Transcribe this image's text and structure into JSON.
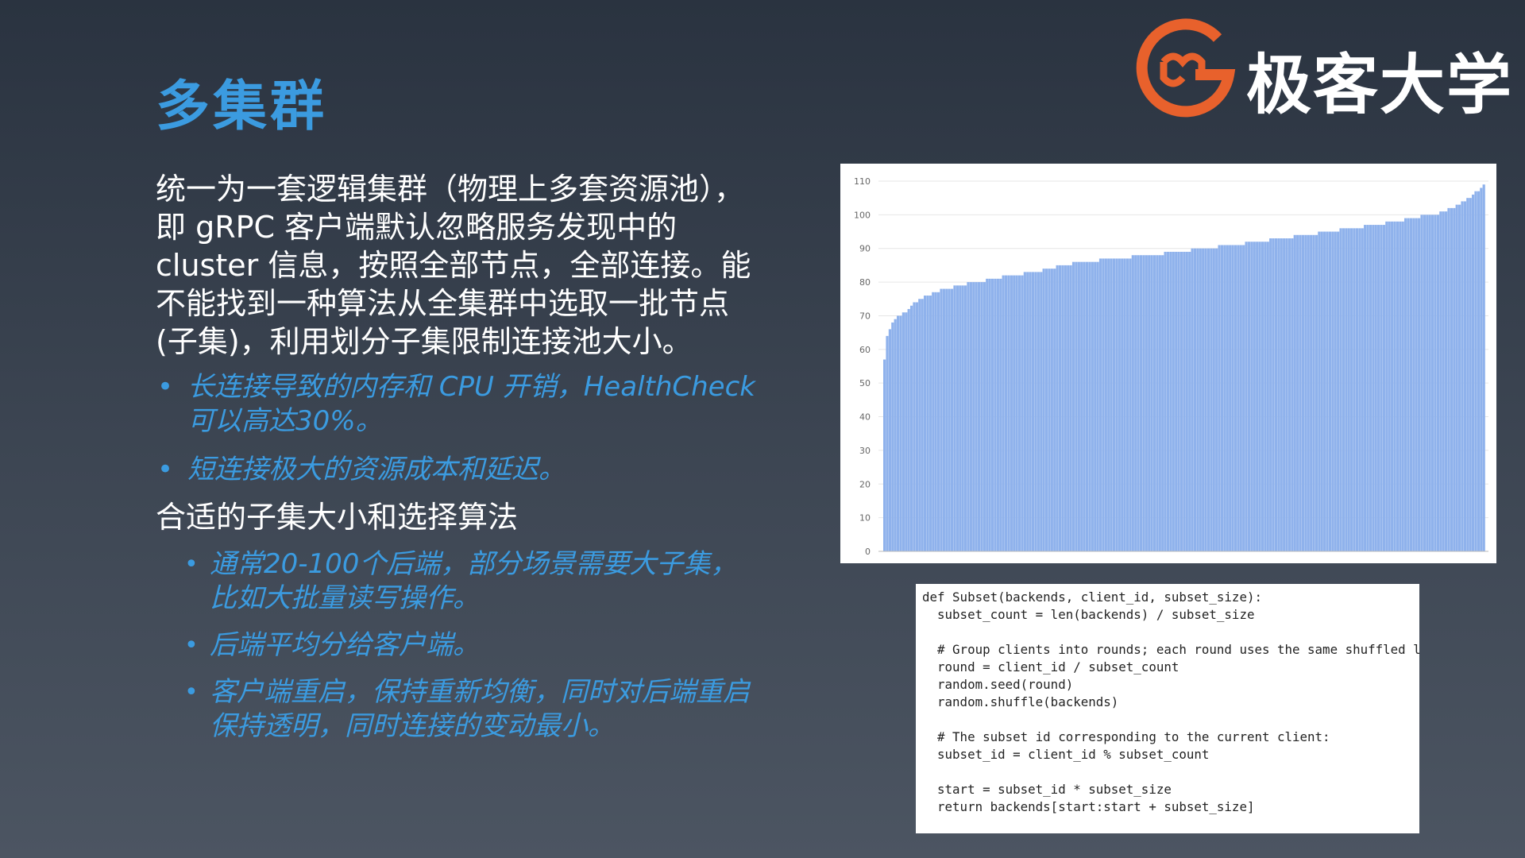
{
  "title": "多集群",
  "logo": {
    "text": "极客大学",
    "icon": "geekbang-g-logo-icon",
    "color": "#e8612c"
  },
  "intro": "统一为一套逻辑集群（物理上多套资源池），即 gRPC 客户端默认忽略服务发现中的 cluster 信息，按照全部节点，全部连接。能不能找到一种算法从全集群中选取一批节点(子集)，利用划分子集限制连接池大小。",
  "bullets": [
    "长连接导致的内存和 CPU 开销，HealthCheck 可以高达30%。",
    "短连接极大的资源成本和延迟。"
  ],
  "subheading": "合适的子集大小和选择算法",
  "sub_bullets": [
    "通常20-100个后端，部分场景需要大子集，比如大批量读写操作。",
    "后端平均分给客户端。",
    "客户端重启，保持重新均衡，同时对后端重启保持透明，同时连接的变动最小。"
  ],
  "colors": {
    "accent": "#3b9be0",
    "bar": "#8fb2ec"
  },
  "chart_data": {
    "type": "bar",
    "title": "",
    "xlabel": "",
    "ylabel": "",
    "ylim": [
      0,
      110
    ],
    "yticks": [
      "0",
      "10",
      "20",
      "30",
      "40",
      "50",
      "60",
      "70",
      "80",
      "90",
      "100",
      "110"
    ],
    "values": [
      57,
      64,
      66,
      68,
      69,
      70,
      70,
      71,
      71,
      72,
      73,
      74,
      74,
      75,
      75,
      76,
      76,
      76,
      77,
      77,
      77,
      78,
      78,
      78,
      78,
      78,
      79,
      79,
      79,
      79,
      79,
      80,
      80,
      80,
      80,
      80,
      80,
      80,
      81,
      81,
      81,
      81,
      81,
      81,
      82,
      82,
      82,
      82,
      82,
      82,
      82,
      82,
      83,
      83,
      83,
      83,
      83,
      83,
      83,
      84,
      84,
      84,
      84,
      84,
      85,
      85,
      85,
      85,
      85,
      85,
      86,
      86,
      86,
      86,
      86,
      86,
      86,
      86,
      86,
      86,
      87,
      87,
      87,
      87,
      87,
      87,
      87,
      87,
      87,
      87,
      87,
      87,
      88,
      88,
      88,
      88,
      88,
      88,
      88,
      88,
      88,
      88,
      88,
      88,
      89,
      89,
      89,
      89,
      89,
      89,
      89,
      89,
      89,
      89,
      90,
      90,
      90,
      90,
      90,
      90,
      90,
      90,
      90,
      90,
      91,
      91,
      91,
      91,
      91,
      91,
      91,
      91,
      91,
      91,
      92,
      92,
      92,
      92,
      92,
      92,
      92,
      92,
      92,
      93,
      93,
      93,
      93,
      93,
      93,
      93,
      93,
      93,
      94,
      94,
      94,
      94,
      94,
      94,
      94,
      94,
      94,
      95,
      95,
      95,
      95,
      95,
      95,
      95,
      95,
      96,
      96,
      96,
      96,
      96,
      96,
      96,
      96,
      96,
      97,
      97,
      97,
      97,
      97,
      97,
      97,
      97,
      98,
      98,
      98,
      98,
      98,
      98,
      98,
      99,
      99,
      99,
      99,
      99,
      99,
      100,
      100,
      100,
      100,
      100,
      100,
      100,
      101,
      101,
      101,
      102,
      102,
      102,
      103,
      103,
      104,
      104,
      105,
      105,
      106,
      107,
      107,
      108,
      109
    ]
  },
  "code_lines": [
    "def Subset(backends, client_id, subset_size):",
    "  subset_count = len(backends) / subset_size",
    "",
    "  # Group clients into rounds; each round uses the same shuffled list:",
    "  round = client_id / subset_count",
    "  random.seed(round)",
    "  random.shuffle(backends)",
    "",
    "  # The subset id corresponding to the current client:",
    "  subset_id = client_id % subset_count",
    "",
    "  start = subset_id * subset_size",
    "  return backends[start:start + subset_size]"
  ]
}
